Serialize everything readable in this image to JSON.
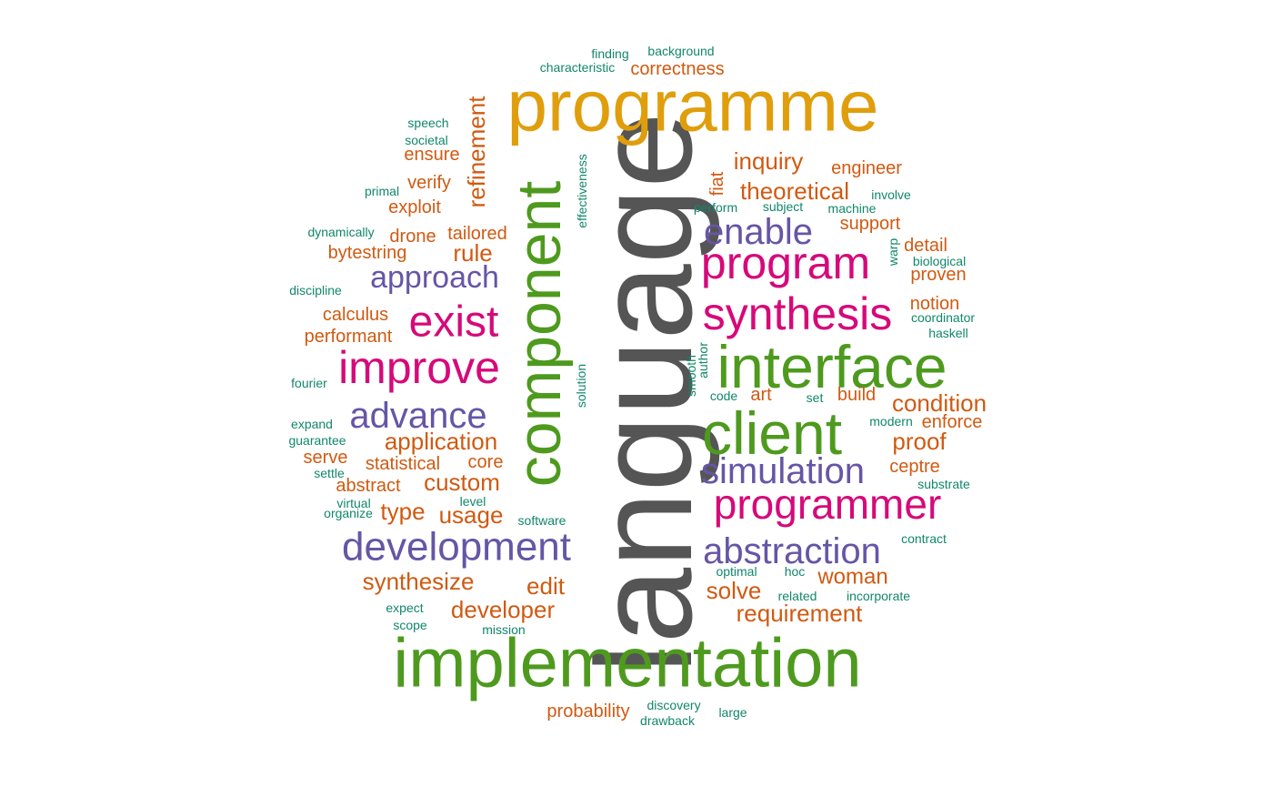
{
  "colors": {
    "gray": "#555555",
    "gold": "#E09E0C",
    "green": "#4E9A1E",
    "magenta": "#D6097A",
    "purple": "#6556A6",
    "orange": "#D05A11",
    "teal": "#11876A"
  },
  "words": [
    {
      "text": "language",
      "color": "gray"
    },
    {
      "text": "programme",
      "color": "gold"
    },
    {
      "text": "implementation",
      "color": "green"
    },
    {
      "text": "component",
      "color": "green"
    },
    {
      "text": "interface",
      "color": "green"
    },
    {
      "text": "client",
      "color": "green"
    },
    {
      "text": "program",
      "color": "magenta"
    },
    {
      "text": "synthesis",
      "color": "magenta"
    },
    {
      "text": "programmer",
      "color": "magenta"
    },
    {
      "text": "improve",
      "color": "magenta"
    },
    {
      "text": "exist",
      "color": "magenta"
    },
    {
      "text": "development",
      "color": "purple"
    },
    {
      "text": "abstraction",
      "color": "purple"
    },
    {
      "text": "simulation",
      "color": "purple"
    },
    {
      "text": "advance",
      "color": "purple"
    },
    {
      "text": "enable",
      "color": "purple"
    },
    {
      "text": "approach",
      "color": "purple"
    },
    {
      "text": "refinement",
      "color": "orange"
    },
    {
      "text": "correctness",
      "color": "orange"
    },
    {
      "text": "inquiry",
      "color": "orange"
    },
    {
      "text": "theoretical",
      "color": "orange"
    },
    {
      "text": "engineer",
      "color": "orange"
    },
    {
      "text": "support",
      "color": "orange"
    },
    {
      "text": "detail",
      "color": "orange"
    },
    {
      "text": "proven",
      "color": "orange"
    },
    {
      "text": "notion",
      "color": "orange"
    },
    {
      "text": "condition",
      "color": "orange"
    },
    {
      "text": "enforce",
      "color": "orange"
    },
    {
      "text": "proof",
      "color": "orange"
    },
    {
      "text": "ceptre",
      "color": "orange"
    },
    {
      "text": "build",
      "color": "orange"
    },
    {
      "text": "art",
      "color": "orange"
    },
    {
      "text": "woman",
      "color": "orange"
    },
    {
      "text": "solve",
      "color": "orange"
    },
    {
      "text": "requirement",
      "color": "orange"
    },
    {
      "text": "ensure",
      "color": "orange"
    },
    {
      "text": "verify",
      "color": "orange"
    },
    {
      "text": "exploit",
      "color": "orange"
    },
    {
      "text": "tailored",
      "color": "orange"
    },
    {
      "text": "drone",
      "color": "orange"
    },
    {
      "text": "rule",
      "color": "orange"
    },
    {
      "text": "bytestring",
      "color": "orange"
    },
    {
      "text": "calculus",
      "color": "orange"
    },
    {
      "text": "performant",
      "color": "orange"
    },
    {
      "text": "application",
      "color": "orange"
    },
    {
      "text": "serve",
      "color": "orange"
    },
    {
      "text": "statistical",
      "color": "orange"
    },
    {
      "text": "core",
      "color": "orange"
    },
    {
      "text": "abstract",
      "color": "orange"
    },
    {
      "text": "custom",
      "color": "orange"
    },
    {
      "text": "type",
      "color": "orange"
    },
    {
      "text": "usage",
      "color": "orange"
    },
    {
      "text": "synthesize",
      "color": "orange"
    },
    {
      "text": "edit",
      "color": "orange"
    },
    {
      "text": "developer",
      "color": "orange"
    },
    {
      "text": "probability",
      "color": "orange"
    },
    {
      "text": "fiat",
      "color": "orange"
    },
    {
      "text": "finding",
      "color": "teal"
    },
    {
      "text": "background",
      "color": "teal"
    },
    {
      "text": "characteristic",
      "color": "teal"
    },
    {
      "text": "speech",
      "color": "teal"
    },
    {
      "text": "societal",
      "color": "teal"
    },
    {
      "text": "primal",
      "color": "teal"
    },
    {
      "text": "dynamically",
      "color": "teal"
    },
    {
      "text": "discipline",
      "color": "teal"
    },
    {
      "text": "effectiveness",
      "color": "teal"
    },
    {
      "text": "perform",
      "color": "teal"
    },
    {
      "text": "subject",
      "color": "teal"
    },
    {
      "text": "machine",
      "color": "teal"
    },
    {
      "text": "involve",
      "color": "teal"
    },
    {
      "text": "warp",
      "color": "teal"
    },
    {
      "text": "biological",
      "color": "teal"
    },
    {
      "text": "coordinator",
      "color": "teal"
    },
    {
      "text": "haskell",
      "color": "teal"
    },
    {
      "text": "fourier",
      "color": "teal"
    },
    {
      "text": "solution",
      "color": "teal"
    },
    {
      "text": "smooth",
      "color": "teal"
    },
    {
      "text": "author",
      "color": "teal"
    },
    {
      "text": "code",
      "color": "teal"
    },
    {
      "text": "set",
      "color": "teal"
    },
    {
      "text": "modern",
      "color": "teal"
    },
    {
      "text": "expand",
      "color": "teal"
    },
    {
      "text": "guarantee",
      "color": "teal"
    },
    {
      "text": "settle",
      "color": "teal"
    },
    {
      "text": "virtual",
      "color": "teal"
    },
    {
      "text": "organize",
      "color": "teal"
    },
    {
      "text": "level",
      "color": "teal"
    },
    {
      "text": "software",
      "color": "teal"
    },
    {
      "text": "substrate",
      "color": "teal"
    },
    {
      "text": "contract",
      "color": "teal"
    },
    {
      "text": "optimal",
      "color": "teal"
    },
    {
      "text": "hoc",
      "color": "teal"
    },
    {
      "text": "related",
      "color": "teal"
    },
    {
      "text": "incorporate",
      "color": "teal"
    },
    {
      "text": "expect",
      "color": "teal"
    },
    {
      "text": "scope",
      "color": "teal"
    },
    {
      "text": "mission",
      "color": "teal"
    },
    {
      "text": "discovery",
      "color": "teal"
    },
    {
      "text": "drawback",
      "color": "teal"
    },
    {
      "text": "large",
      "color": "teal"
    }
  ]
}
